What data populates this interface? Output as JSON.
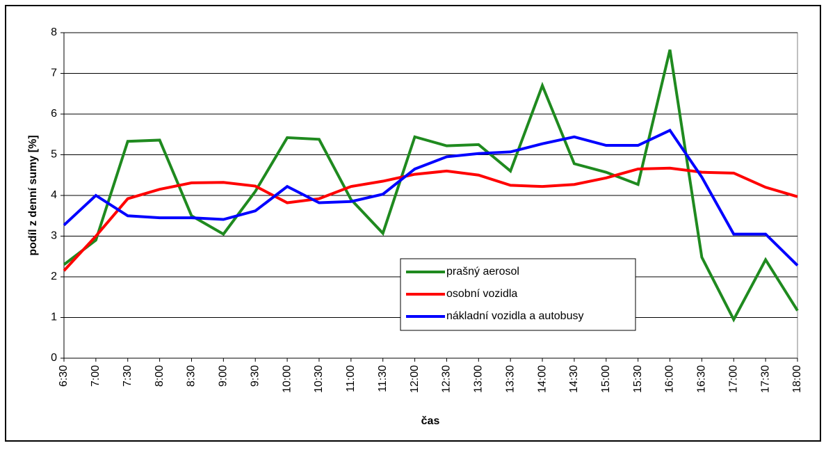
{
  "chart_data": {
    "type": "line",
    "y_label": "podíl z denní sumy [%]",
    "x_label": "čas",
    "categories": [
      "6:30",
      "7:00",
      "7:30",
      "8:00",
      "8:30",
      "9:00",
      "9:30",
      "10:00",
      "10:30",
      "11:00",
      "11:30",
      "12:00",
      "12:30",
      "13:00",
      "13:30",
      "14:00",
      "14:30",
      "15:00",
      "15:30",
      "16:00",
      "16:30",
      "17:00",
      "17:30",
      "18:00"
    ],
    "series": [
      {
        "name": "prašný aerosol",
        "color": "#1f8a1f",
        "values": [
          2.3,
          2.9,
          5.33,
          5.36,
          3.5,
          3.05,
          4.1,
          5.42,
          5.38,
          3.9,
          3.07,
          5.44,
          5.22,
          5.25,
          4.6,
          6.7,
          4.78,
          4.57,
          4.27,
          7.58,
          2.48,
          0.95,
          2.42,
          1.17
        ]
      },
      {
        "name": "osobní vozidla",
        "color": "#ff0000",
        "values": [
          2.15,
          3.0,
          3.92,
          4.15,
          4.31,
          4.32,
          4.23,
          3.82,
          3.92,
          4.22,
          4.35,
          4.52,
          4.6,
          4.5,
          4.25,
          4.22,
          4.27,
          4.43,
          4.65,
          4.67,
          4.57,
          4.55,
          4.2,
          3.97
        ]
      },
      {
        "name": "nákladní vozidla a autobusy",
        "color": "#0000ff",
        "values": [
          3.27,
          4.0,
          3.5,
          3.45,
          3.45,
          3.41,
          3.62,
          4.22,
          3.82,
          3.85,
          4.03,
          4.65,
          4.95,
          5.03,
          5.07,
          5.27,
          5.44,
          5.23,
          5.23,
          5.6,
          4.45,
          3.05,
          3.05,
          2.28
        ]
      }
    ],
    "ylim": [
      0,
      8
    ],
    "yticks": [
      0,
      1,
      2,
      3,
      4,
      5,
      6,
      7,
      8
    ],
    "grid": true,
    "legend": "lower right"
  }
}
